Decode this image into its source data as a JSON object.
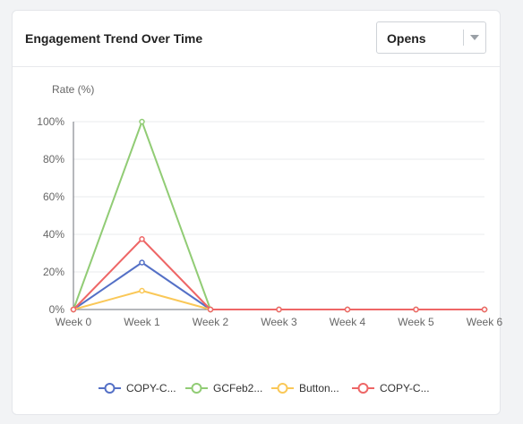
{
  "card": {
    "title": "Engagement Trend Over Time",
    "metric_select": {
      "value": "Opens"
    }
  },
  "chart_data": {
    "type": "line",
    "ylabel": "Rate (%)",
    "x": [
      "Week 0",
      "Week 1",
      "Week 2",
      "Week 3",
      "Week 4",
      "Week 5",
      "Week 6"
    ],
    "yticks": [
      "0%",
      "20%",
      "40%",
      "60%",
      "80%",
      "100%"
    ],
    "ylim": [
      0,
      100
    ],
    "grid": true,
    "legend_position": "bottom",
    "series": [
      {
        "name": "COPY-C...",
        "color": "#5470c6",
        "values": [
          0,
          25,
          0,
          0,
          0,
          0,
          0
        ]
      },
      {
        "name": "GCFeb2...",
        "color": "#91cc75",
        "values": [
          0,
          100,
          0,
          0,
          0,
          0,
          0
        ]
      },
      {
        "name": "Button...",
        "color": "#fac858",
        "values": [
          0,
          10,
          0,
          0,
          0,
          0,
          0
        ]
      },
      {
        "name": "COPY-C...",
        "color": "#ee6666",
        "values": [
          0,
          37.5,
          0,
          0,
          0,
          0,
          0
        ]
      }
    ]
  }
}
